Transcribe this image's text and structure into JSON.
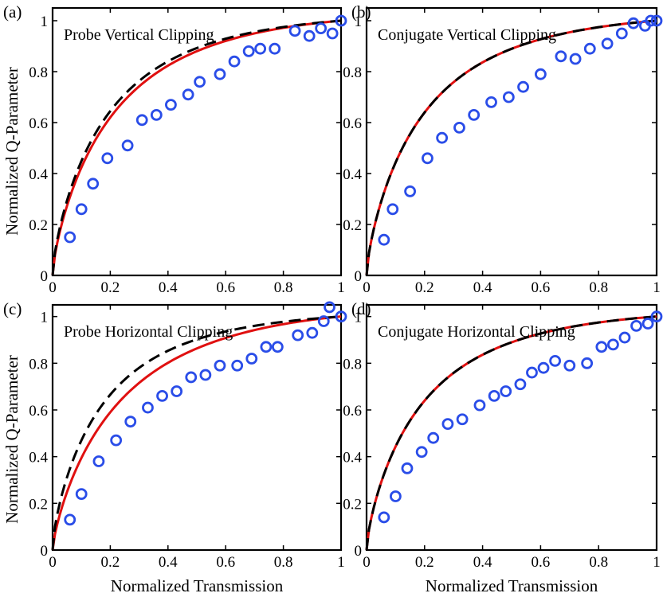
{
  "figure": {
    "x_axis_label": "Normalized Transmission",
    "y_axis_label": "Normalized Q-Parameter"
  },
  "colors": {
    "data_points": "#2a4de8",
    "fit_red": "#e01010",
    "fit_dashed": "#000000"
  },
  "chart_data": [
    {
      "type": "scatter",
      "panel": "(a)",
      "title": "Probe Vertical Clipping",
      "xlim": [
        0,
        1
      ],
      "ylim": [
        0,
        1.05
      ],
      "xticks": [
        "0",
        "0.2",
        "0.4",
        "0.6",
        "0.8",
        "1"
      ],
      "yticks": [
        "0",
        "0.2",
        "0.4",
        "0.6",
        "0.8",
        "1"
      ],
      "red_fit": {
        "k": 0.5,
        "p": 1.75
      },
      "dashed_fit": {
        "k": 0.48,
        "p": 1.85
      },
      "points": [
        [
          0.06,
          0.15
        ],
        [
          0.1,
          0.26
        ],
        [
          0.14,
          0.36
        ],
        [
          0.19,
          0.46
        ],
        [
          0.26,
          0.51
        ],
        [
          0.31,
          0.61
        ],
        [
          0.36,
          0.63
        ],
        [
          0.41,
          0.67
        ],
        [
          0.47,
          0.71
        ],
        [
          0.51,
          0.76
        ],
        [
          0.58,
          0.79
        ],
        [
          0.63,
          0.84
        ],
        [
          0.68,
          0.88
        ],
        [
          0.72,
          0.89
        ],
        [
          0.77,
          0.89
        ],
        [
          0.84,
          0.96
        ],
        [
          0.89,
          0.94
        ],
        [
          0.93,
          0.97
        ],
        [
          0.97,
          0.95
        ],
        [
          1.0,
          1.0
        ]
      ]
    },
    {
      "type": "scatter",
      "panel": "(b)",
      "title": "Conjugate Vertical Clipping",
      "xlim": [
        0,
        1
      ],
      "ylim": [
        0,
        1.05
      ],
      "xticks": [
        "0",
        "0.2",
        "0.4",
        "0.6",
        "0.8",
        "1"
      ],
      "yticks": [
        "0",
        "0.2",
        "0.4",
        "0.6",
        "0.8",
        "1"
      ],
      "red_fit": {
        "k": 0.47,
        "p": 1.8
      },
      "dashed_fit": {
        "k": 0.47,
        "p": 1.8
      },
      "points": [
        [
          0.06,
          0.14
        ],
        [
          0.09,
          0.26
        ],
        [
          0.15,
          0.33
        ],
        [
          0.21,
          0.46
        ],
        [
          0.26,
          0.54
        ],
        [
          0.32,
          0.58
        ],
        [
          0.37,
          0.63
        ],
        [
          0.43,
          0.68
        ],
        [
          0.49,
          0.7
        ],
        [
          0.54,
          0.74
        ],
        [
          0.6,
          0.79
        ],
        [
          0.67,
          0.86
        ],
        [
          0.72,
          0.85
        ],
        [
          0.77,
          0.89
        ],
        [
          0.83,
          0.91
        ],
        [
          0.88,
          0.95
        ],
        [
          0.92,
          0.99
        ],
        [
          0.96,
          0.98
        ],
        [
          0.98,
          1.0
        ],
        [
          1.0,
          1.0
        ]
      ]
    },
    {
      "type": "scatter",
      "panel": "(c)",
      "title": "Probe Horizontal Clipping",
      "xlim": [
        0,
        1
      ],
      "ylim": [
        0,
        1.05
      ],
      "xticks": [
        "0",
        "0.2",
        "0.4",
        "0.6",
        "0.8",
        "1"
      ],
      "yticks": [
        "0",
        "0.2",
        "0.4",
        "0.6",
        "0.8",
        "1"
      ],
      "red_fit": {
        "k": 0.5,
        "p": 1.6
      },
      "dashed_fit": {
        "k": 0.47,
        "p": 1.95
      },
      "points": [
        [
          0.06,
          0.13
        ],
        [
          0.1,
          0.24
        ],
        [
          0.16,
          0.38
        ],
        [
          0.22,
          0.47
        ],
        [
          0.27,
          0.55
        ],
        [
          0.33,
          0.61
        ],
        [
          0.38,
          0.66
        ],
        [
          0.43,
          0.68
        ],
        [
          0.48,
          0.74
        ],
        [
          0.53,
          0.75
        ],
        [
          0.58,
          0.79
        ],
        [
          0.64,
          0.79
        ],
        [
          0.69,
          0.82
        ],
        [
          0.74,
          0.87
        ],
        [
          0.78,
          0.87
        ],
        [
          0.85,
          0.92
        ],
        [
          0.9,
          0.93
        ],
        [
          0.94,
          0.98
        ],
        [
          0.96,
          1.04
        ],
        [
          1.0,
          1.0
        ]
      ]
    },
    {
      "type": "scatter",
      "panel": "(d)",
      "title": "Conjugate Horizontal Clipping",
      "xlim": [
        0,
        1
      ],
      "ylim": [
        0,
        1.05
      ],
      "xticks": [
        "0",
        "0.2",
        "0.4",
        "0.6",
        "0.8",
        "1"
      ],
      "yticks": [
        "0",
        "0.2",
        "0.4",
        "0.6",
        "0.8",
        "1"
      ],
      "red_fit": {
        "k": 0.47,
        "p": 1.8
      },
      "dashed_fit": {
        "k": 0.47,
        "p": 1.8
      },
      "points": [
        [
          0.06,
          0.14
        ],
        [
          0.1,
          0.23
        ],
        [
          0.14,
          0.35
        ],
        [
          0.19,
          0.42
        ],
        [
          0.23,
          0.48
        ],
        [
          0.28,
          0.54
        ],
        [
          0.33,
          0.56
        ],
        [
          0.39,
          0.62
        ],
        [
          0.44,
          0.66
        ],
        [
          0.48,
          0.68
        ],
        [
          0.53,
          0.71
        ],
        [
          0.57,
          0.76
        ],
        [
          0.61,
          0.78
        ],
        [
          0.65,
          0.81
        ],
        [
          0.7,
          0.79
        ],
        [
          0.76,
          0.8
        ],
        [
          0.81,
          0.87
        ],
        [
          0.85,
          0.88
        ],
        [
          0.89,
          0.91
        ],
        [
          0.93,
          0.96
        ],
        [
          0.97,
          0.97
        ],
        [
          1.0,
          1.0
        ]
      ]
    }
  ]
}
